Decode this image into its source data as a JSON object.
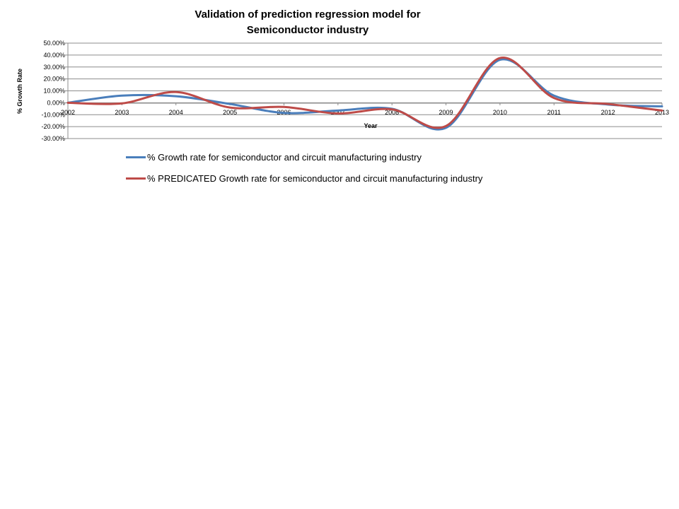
{
  "chart_data": {
    "type": "line",
    "title_lines": [
      "Validation of prediction regression model for",
      "Semiconductor industry"
    ],
    "xlabel": "Year",
    "ylabel": "% Growth Rate",
    "categories": [
      "2002",
      "2003",
      "2004",
      "2005",
      "2006",
      "2007",
      "2008",
      "2009",
      "2010",
      "2011",
      "2012",
      "2013"
    ],
    "ylim": [
      -30,
      50
    ],
    "y_ticks": [
      50,
      40,
      30,
      20,
      10,
      0,
      -10,
      -20,
      -30
    ],
    "y_tick_labels": [
      "50.00%",
      "40.00%",
      "30.00%",
      "20.00%",
      "10.00%",
      "0.00%",
      "-10.00%",
      "-20.00%",
      "-30.00%"
    ],
    "grid": true,
    "legend_position": "bottom",
    "series": [
      {
        "name": "% Growth rate for semiconductor and circuit manufacturing industry",
        "color": "#4a7ebb",
        "values": [
          0.0,
          6.0,
          5.5,
          -1.0,
          -8.5,
          -6.5,
          -5.0,
          -21.0,
          36.0,
          6.0,
          -1.5,
          -3.0
        ]
      },
      {
        "name": "% PREDICATED Growth rate for semiconductor and circuit manufacturing industry",
        "color": "#be4b48",
        "values": [
          0.0,
          -0.5,
          9.0,
          -4.0,
          -3.5,
          -9.0,
          -5.5,
          -19.5,
          37.5,
          4.0,
          -1.0,
          -6.5
        ]
      }
    ]
  }
}
